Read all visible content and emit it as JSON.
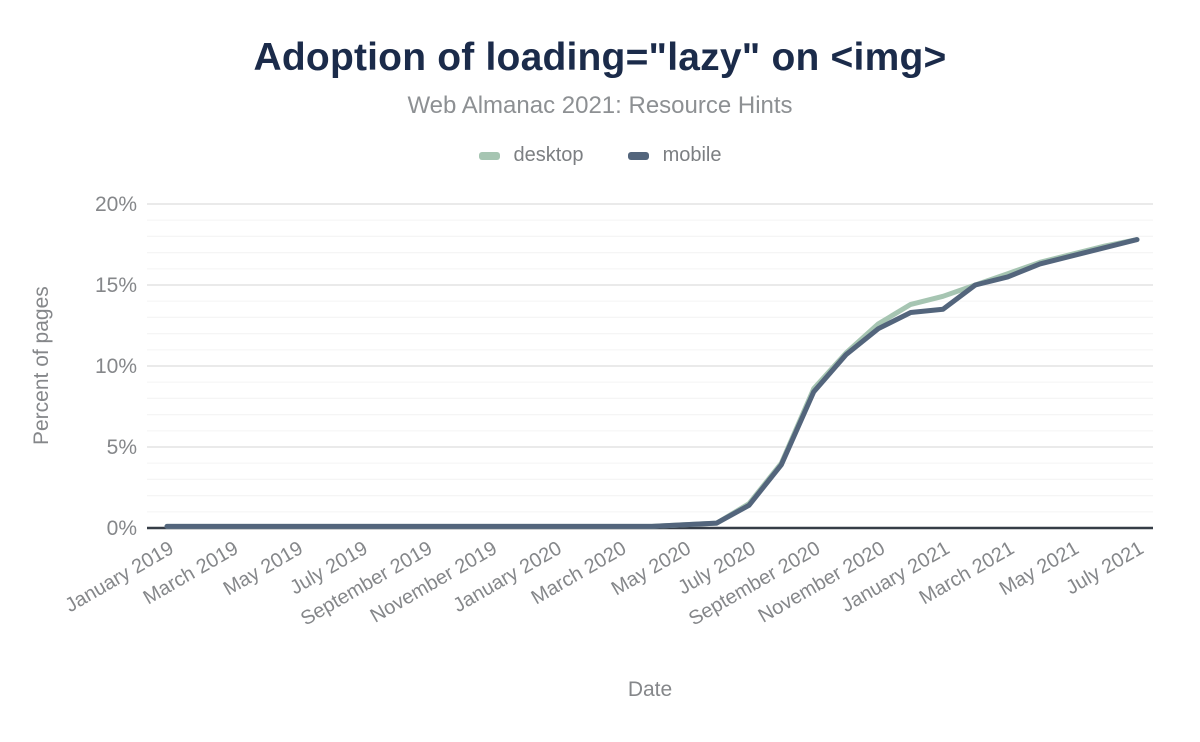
{
  "header": {
    "title": "Adoption of loading=\"lazy\" on <img>",
    "subtitle": "Web Almanac 2021: Resource Hints"
  },
  "legend": [
    {
      "label": "desktop",
      "color": "#a6c5b2"
    },
    {
      "label": "mobile",
      "color": "#53657c"
    }
  ],
  "axes": {
    "y_title": "Percent of pages",
    "x_title": "Date"
  },
  "colors": {
    "title": "#1b2b4a",
    "subtitle": "#8d9093",
    "tick_label": "#85878a",
    "grid_minor": "#f5f5f5",
    "grid_major": "#e4e4e4",
    "axis_line": "#363d47",
    "desktop": "#a6c5b2",
    "mobile": "#53657c"
  },
  "chart_data": {
    "type": "line",
    "title": "Adoption of loading=\"lazy\" on <img>",
    "subtitle": "Web Almanac 2021: Resource Hints",
    "xlabel": "Date",
    "ylabel": "Percent of pages",
    "ylim": [
      0,
      20
    ],
    "yticks": [
      0,
      5,
      10,
      15,
      20
    ],
    "ytick_labels": [
      "0%",
      "5%",
      "10%",
      "15%",
      "20%"
    ],
    "grid": "minor horizontal every 1%, major every 5%",
    "legend_position": "top center",
    "x": [
      "January 2019",
      "February 2019",
      "March 2019",
      "April 2019",
      "May 2019",
      "June 2019",
      "July 2019",
      "August 2019",
      "September 2019",
      "October 2019",
      "November 2019",
      "December 2019",
      "January 2020",
      "February 2020",
      "March 2020",
      "April 2020",
      "May 2020",
      "June 2020",
      "July 2020",
      "August 2020",
      "September 2020",
      "October 2020",
      "November 2020",
      "December 2020",
      "January 2021",
      "February 2021",
      "March 2021",
      "April 2021",
      "May 2021",
      "June 2021",
      "July 2021"
    ],
    "xtick_every": 2,
    "xtick_labels": [
      "January 2019",
      "March 2019",
      "May 2019",
      "July 2019",
      "September 2019",
      "November 2019",
      "January 2020",
      "March 2020",
      "May 2020",
      "July 2020",
      "September 2020",
      "November 2020",
      "January 2021",
      "March 2021",
      "May 2021",
      "July 2021"
    ],
    "series": [
      {
        "name": "desktop",
        "color": "#a6c5b2",
        "values": [
          0.1,
          0.1,
          0.1,
          0.1,
          0.1,
          0.1,
          0.1,
          0.1,
          0.1,
          0.1,
          0.1,
          0.1,
          0.1,
          0.1,
          0.1,
          0.1,
          0.2,
          0.3,
          1.5,
          4.0,
          8.6,
          10.8,
          12.6,
          13.8,
          14.3,
          15.0,
          15.7,
          16.4,
          16.9,
          17.4,
          17.8
        ]
      },
      {
        "name": "mobile",
        "color": "#53657c",
        "values": [
          0.1,
          0.1,
          0.1,
          0.1,
          0.1,
          0.1,
          0.1,
          0.1,
          0.1,
          0.1,
          0.1,
          0.1,
          0.1,
          0.1,
          0.1,
          0.1,
          0.2,
          0.3,
          1.4,
          3.9,
          8.4,
          10.7,
          12.3,
          13.3,
          13.5,
          15.0,
          15.5,
          16.3,
          16.8,
          17.3,
          17.8
        ]
      }
    ]
  }
}
